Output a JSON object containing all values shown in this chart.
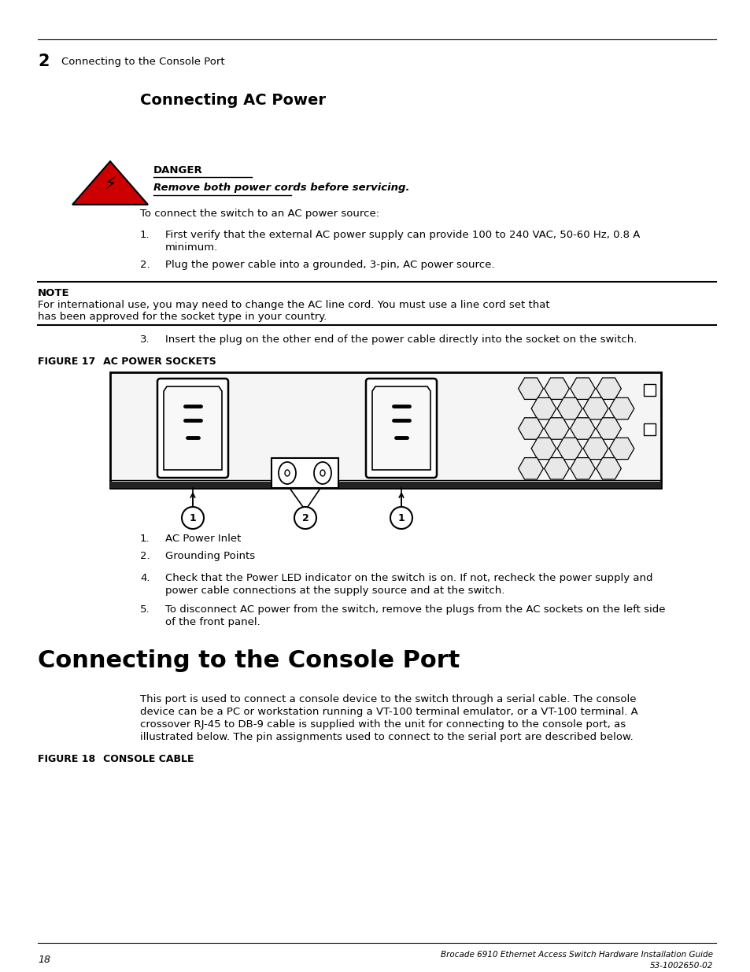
{
  "page_number": "18",
  "footer_title": "Brocade 6910 Ethernet Access Switch Hardware Installation Guide",
  "footer_code": "53-1002650-02",
  "chapter_number": "2",
  "chapter_title": "Connecting to the Console Port",
  "section1_title": "Connecting AC Power",
  "danger_label": "DANGER",
  "danger_text": "Remove both power cords before servicing.",
  "intro_text": "To connect the switch to an AC power source:",
  "step1_num": "1.",
  "step1": "First verify that the external AC power supply can provide 100 to 240 VAC, 50-60 Hz, 0.8 A",
  "step1b": "minimum.",
  "step2_num": "2.",
  "step2": "Plug the power cable into a grounded, 3-pin, AC power source.",
  "note_label": "NOTE",
  "note_text": "For international use, you may need to change the AC line cord. You must use a line cord set that",
  "note_text2": "has been approved for the socket type in your country.",
  "step3_num": "3.",
  "step3": "Insert the plug on the other end of the power cable directly into the socket on the switch.",
  "figure17_label": "FIGURE 17",
  "figure17_title": "   AC POWER SOCKETS",
  "callout1_text": "AC Power Inlet",
  "callout2_text": "Grounding Points",
  "step4_num": "4.",
  "step4": "Check that the Power LED indicator on the switch is on. If not, recheck the power supply and",
  "step4b": "power cable connections at the supply source and at the switch.",
  "step5_num": "5.",
  "step5": "To disconnect AC power from the switch, remove the plugs from the AC sockets on the left side",
  "step5b": "of the front panel.",
  "section2_title": "Connecting to the Console Port",
  "console_p1": "This port is used to connect a console device to the switch through a serial cable. The console",
  "console_p2": "device can be a PC or workstation running a VT-100 terminal emulator, or a VT-100 terminal. A",
  "console_p3": "crossover RJ-45 to DB-9 cable is supplied with the unit for connecting to the console port, as",
  "console_p4": "illustrated below. The pin assignments used to connect to the serial port are described below.",
  "figure18_label": "FIGURE 18",
  "figure18_title": "   CONSOLE CABLE",
  "bg_color": "#ffffff"
}
